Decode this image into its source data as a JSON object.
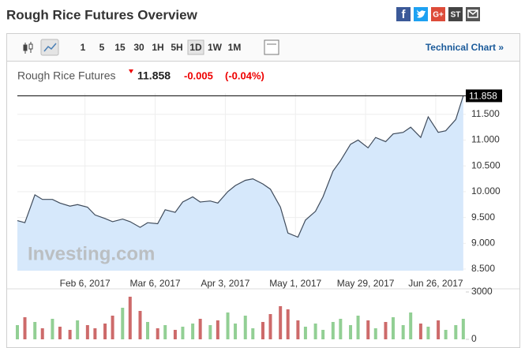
{
  "header": {
    "title": "Rough Rice Futures Overview",
    "share": [
      "f",
      "G+",
      "ST"
    ]
  },
  "toolbar": {
    "intervals": [
      "1",
      "5",
      "15",
      "30",
      "1H",
      "5H",
      "1D",
      "1W",
      "1M"
    ],
    "active": 6,
    "link": "Technical Chart »"
  },
  "quote": {
    "name": "Rough Rice Futures",
    "price": "11.858",
    "change": "-0.005",
    "change_pct": "(-0.04%)"
  },
  "chart_data": {
    "type": "line",
    "watermark": "Investing.com",
    "x": [
      "2017-01-10",
      "2017-01-13",
      "2017-01-17",
      "2017-01-20",
      "2017-01-24",
      "2017-01-27",
      "2017-01-31",
      "2017-02-03",
      "2017-02-07",
      "2017-02-10",
      "2017-02-14",
      "2017-02-17",
      "2017-02-21",
      "2017-02-24",
      "2017-02-28",
      "2017-03-03",
      "2017-03-07",
      "2017-03-10",
      "2017-03-14",
      "2017-03-17",
      "2017-03-21",
      "2017-03-24",
      "2017-03-28",
      "2017-03-31",
      "2017-04-04",
      "2017-04-07",
      "2017-04-11",
      "2017-04-14",
      "2017-04-18",
      "2017-04-21",
      "2017-04-25",
      "2017-04-28",
      "2017-05-02",
      "2017-05-05",
      "2017-05-09",
      "2017-05-12",
      "2017-05-16",
      "2017-05-19",
      "2017-05-23",
      "2017-05-26",
      "2017-05-30",
      "2017-06-02",
      "2017-06-06",
      "2017-06-09",
      "2017-06-13",
      "2017-06-16",
      "2017-06-20",
      "2017-06-23",
      "2017-06-27",
      "2017-06-30",
      "2017-07-04",
      "2017-07-07"
    ],
    "values": [
      9.44,
      9.4,
      9.94,
      9.85,
      9.85,
      9.78,
      9.72,
      9.75,
      9.7,
      9.55,
      9.48,
      9.42,
      9.47,
      9.42,
      9.31,
      9.4,
      9.38,
      9.65,
      9.6,
      9.8,
      9.9,
      9.8,
      9.82,
      9.78,
      10.0,
      10.12,
      10.22,
      10.25,
      10.15,
      10.05,
      9.7,
      9.2,
      9.12,
      9.45,
      9.62,
      9.9,
      10.4,
      10.6,
      10.92,
      11.0,
      10.85,
      11.05,
      10.97,
      11.12,
      11.15,
      11.25,
      11.05,
      11.45,
      11.15,
      11.18,
      11.4,
      11.858
    ],
    "color": "#3f4b5b",
    "fill": "#d6e8fb",
    "xlim": [
      "2017-01-10",
      "2017-07-08"
    ],
    "xticks": [
      {
        "value": "2017-02-06",
        "label": "Feb 6, 2017"
      },
      {
        "value": "2017-03-06",
        "label": "Mar 6, 2017"
      },
      {
        "value": "2017-04-03",
        "label": "Apr 3, 2017"
      },
      {
        "value": "2017-05-01",
        "label": "May 1, 2017"
      },
      {
        "value": "2017-05-29",
        "label": "May 29, 2017"
      },
      {
        "value": "2017-06-26",
        "label": "Jun 26, 2017"
      }
    ],
    "ylim": [
      8.47,
      11.91
    ],
    "yticks": [
      {
        "value": 8.5,
        "label": "8.500"
      },
      {
        "value": 9,
        "label": "9.000"
      },
      {
        "value": 9.5,
        "label": "9.500"
      },
      {
        "value": 10,
        "label": "10.000"
      },
      {
        "value": 10.5,
        "label": "10.500"
      },
      {
        "value": 11,
        "label": "11.000"
      },
      {
        "value": 11.5,
        "label": "11.500"
      }
    ],
    "grid": true,
    "volume": {
      "values": [
        900,
        1400,
        1100,
        700,
        1300,
        800,
        600,
        1200,
        900,
        700,
        1000,
        1500,
        2000,
        2700,
        1800,
        1100,
        700,
        900,
        600,
        800,
        1000,
        1300,
        900,
        1200,
        1700,
        1000,
        1500,
        700,
        1100,
        1600,
        2100,
        1900,
        1200,
        800,
        1000,
        600,
        1100,
        1300,
        900,
        1500,
        1200,
        700,
        1100,
        1400,
        900,
        1700,
        1000,
        800,
        1200,
        600,
        900,
        1300
      ],
      "ylim": [
        0,
        3000
      ],
      "yticks": [
        0,
        3000
      ],
      "up_color": "#92cf94",
      "down_color": "#cd6a6a"
    }
  }
}
